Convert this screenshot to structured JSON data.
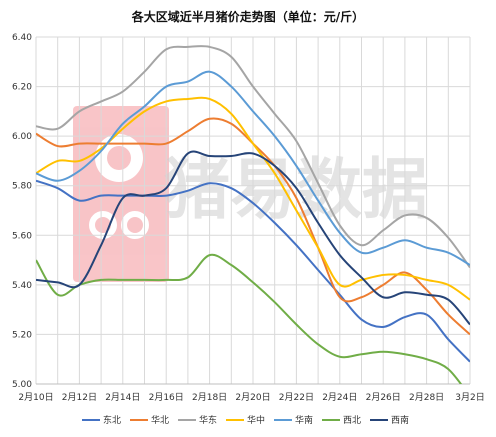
{
  "chart_data": {
    "type": "line",
    "title": "各大区域近半月猪价走势图（单位：元/斤）",
    "watermark": "猪易数据",
    "categories": [
      "2月10日",
      "2月11日",
      "2月12日",
      "2月13日",
      "2月14日",
      "2月15日",
      "2月16日",
      "2月17日",
      "2月18日",
      "2月19日",
      "2月20日",
      "2月21日",
      "2月22日",
      "2月23日",
      "2月24日",
      "2月25日",
      "2月26日",
      "2月27日",
      "2月28日",
      "3月1日",
      "3月2日"
    ],
    "x_tick_labels": [
      "2月10日",
      "2月12日",
      "2月14日",
      "2月16日",
      "2月18日",
      "2月20日",
      "2月22日",
      "2月24日",
      "2月26日",
      "2月28日",
      "3月2日"
    ],
    "y_tick_labels": [
      "5.00",
      "5.20",
      "5.40",
      "5.60",
      "5.80",
      "6.00",
      "6.20",
      "6.40"
    ],
    "ylim": [
      5.0,
      6.4
    ],
    "grid": true,
    "legend_position": "bottom",
    "series": [
      {
        "name": "东北",
        "color": "#4472c4",
        "values": [
          5.82,
          5.79,
          5.74,
          5.76,
          5.76,
          5.76,
          5.76,
          5.78,
          5.81,
          5.79,
          5.73,
          5.65,
          5.56,
          5.46,
          5.36,
          5.26,
          5.23,
          5.27,
          5.28,
          5.18,
          5.09
        ]
      },
      {
        "name": "华北",
        "color": "#ed7d31",
        "values": [
          6.01,
          5.96,
          5.97,
          5.97,
          5.97,
          5.97,
          5.97,
          6.02,
          6.07,
          6.05,
          5.97,
          5.88,
          5.75,
          5.55,
          5.35,
          5.35,
          5.4,
          5.45,
          5.38,
          5.28,
          5.2
        ]
      },
      {
        "name": "华东",
        "color": "#a5a5a5",
        "values": [
          6.04,
          6.03,
          6.1,
          6.14,
          6.18,
          6.26,
          6.35,
          6.36,
          6.36,
          6.32,
          6.2,
          6.09,
          5.98,
          5.81,
          5.64,
          5.56,
          5.62,
          5.68,
          5.67,
          5.59,
          5.47
        ]
      },
      {
        "name": "华中",
        "color": "#ffc000",
        "values": [
          5.85,
          5.9,
          5.9,
          5.95,
          6.03,
          6.1,
          6.14,
          6.15,
          6.15,
          6.09,
          5.97,
          5.85,
          5.7,
          5.55,
          5.4,
          5.42,
          5.44,
          5.44,
          5.42,
          5.4,
          5.34
        ]
      },
      {
        "name": "华南",
        "color": "#5b9bd5",
        "values": [
          5.85,
          5.82,
          5.86,
          5.94,
          6.05,
          6.12,
          6.2,
          6.22,
          6.26,
          6.2,
          6.1,
          6.0,
          5.88,
          5.74,
          5.61,
          5.53,
          5.55,
          5.58,
          5.55,
          5.53,
          5.48
        ]
      },
      {
        "name": "西北",
        "color": "#70ad47",
        "values": [
          5.5,
          5.36,
          5.4,
          5.42,
          5.42,
          5.42,
          5.42,
          5.43,
          5.52,
          5.48,
          5.41,
          5.33,
          5.24,
          5.16,
          5.11,
          5.12,
          5.13,
          5.12,
          5.1,
          5.06,
          4.95
        ]
      },
      {
        "name": "西南",
        "color": "#264478",
        "values": [
          5.42,
          5.41,
          5.4,
          5.56,
          5.75,
          5.76,
          5.79,
          5.93,
          5.92,
          5.92,
          5.93,
          5.88,
          5.79,
          5.65,
          5.52,
          5.43,
          5.35,
          5.37,
          5.36,
          5.34,
          5.24
        ]
      }
    ]
  }
}
